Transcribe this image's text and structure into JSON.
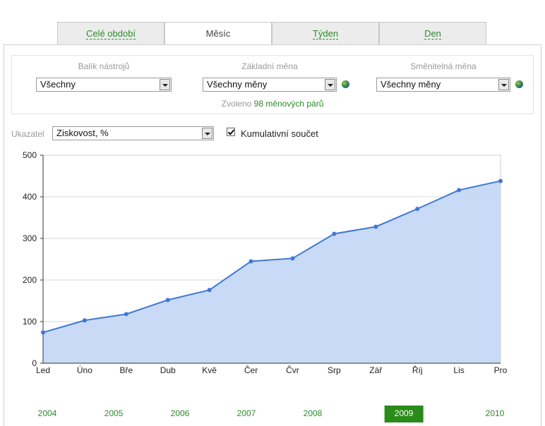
{
  "tabs": [
    {
      "label": "Celé období",
      "active": false
    },
    {
      "label": "Měsíc",
      "active": true
    },
    {
      "label": "Týden",
      "active": false
    },
    {
      "label": "Den",
      "active": false
    }
  ],
  "filters": {
    "toolkit": {
      "label": "Balík nástrojů",
      "value": "Všechny"
    },
    "base_currency": {
      "label": "Základní měna",
      "value": "Všechny měny"
    },
    "quote_currency": {
      "label": "Směnitelná měna",
      "value": "Všechny měny"
    },
    "selected_prefix": "Zvoleno",
    "selected_highlight": "98 měnových párů"
  },
  "indicator": {
    "label": "Ukazatel",
    "value": "Ziskovost, %",
    "cumulative_label": "Kumulativní součet",
    "cumulative_checked": true
  },
  "colors": {
    "accent_green": "#2b8c2b",
    "series_line": "#3f77d6",
    "series_fill": "#c5d8f6",
    "active_year_bg": "#2a8a1a"
  },
  "chart_data": {
    "type": "area",
    "categories": [
      "Led",
      "Úno",
      "Bře",
      "Dub",
      "Kvě",
      "Čer",
      "Čvr",
      "Srp",
      "Zář",
      "Říj",
      "Lis",
      "Pro"
    ],
    "series": [
      {
        "values": [
          74,
          103,
          118,
          152,
          176,
          245,
          252,
          311,
          328,
          371,
          416,
          438
        ]
      }
    ],
    "ylim": [
      0,
      500
    ],
    "yticks": [
      0,
      100,
      200,
      300,
      400,
      500
    ],
    "grid": true,
    "title": "",
    "xlabel": "",
    "ylabel": ""
  },
  "years": [
    {
      "label": "2004",
      "active": false
    },
    {
      "label": "2005",
      "active": false
    },
    {
      "label": "2006",
      "active": false
    },
    {
      "label": "2007",
      "active": false
    },
    {
      "label": "2008",
      "active": false
    },
    {
      "label": "2009",
      "active": true
    },
    {
      "label": "2010",
      "active": false
    }
  ]
}
